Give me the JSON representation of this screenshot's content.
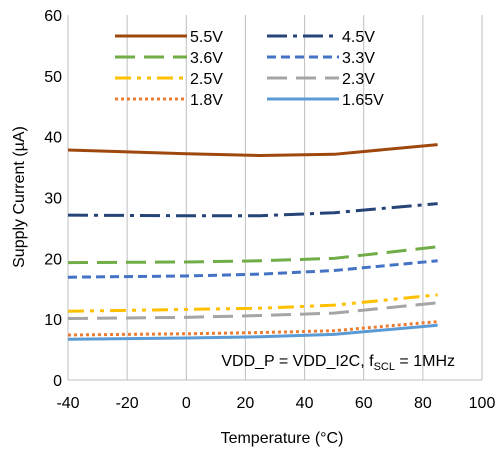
{
  "chart_data": {
    "type": "line",
    "title": "",
    "xlabel": "Temperature (°C)",
    "ylabel": "Supply Current (µA)",
    "xlim": [
      -40,
      100
    ],
    "ylim": [
      0,
      60
    ],
    "xticks": [
      "-40",
      "-20",
      "0",
      "20",
      "40",
      "60",
      "80",
      "100"
    ],
    "yticks": [
      "0",
      "10",
      "20",
      "30",
      "40",
      "50",
      "60"
    ],
    "grid": "vertical",
    "legend_placement": "top-left",
    "annotation": {
      "prefix": "VDD_P = VDD_I2C, f",
      "sub": "SCL",
      "suffix": " = 1MHz"
    },
    "series": [
      {
        "name": "5.5V",
        "color": "#9E480E",
        "style": "solid",
        "x": [
          -40,
          0,
          25,
          50,
          85
        ],
        "y": [
          37.8,
          37.2,
          36.9,
          37.1,
          38.7
        ]
      },
      {
        "name": "4.5V",
        "color": "#264478",
        "style": "dashdot",
        "x": [
          -40,
          0,
          25,
          50,
          85
        ],
        "y": [
          27.1,
          27.0,
          27.0,
          27.5,
          29.0
        ]
      },
      {
        "name": "3.6V",
        "color": "#70AD47",
        "style": "longdash",
        "x": [
          -40,
          0,
          25,
          50,
          85
        ],
        "y": [
          19.3,
          19.4,
          19.6,
          20.0,
          21.9
        ]
      },
      {
        "name": "3.3V",
        "color": "#4472C4",
        "style": "dash",
        "x": [
          -40,
          0,
          25,
          50,
          85
        ],
        "y": [
          16.9,
          17.1,
          17.4,
          18.0,
          19.6
        ]
      },
      {
        "name": "2.5V",
        "color": "#FFC000",
        "style": "dashdotdot",
        "x": [
          -40,
          0,
          25,
          50,
          85
        ],
        "y": [
          11.3,
          11.6,
          11.8,
          12.3,
          14.0
        ]
      },
      {
        "name": "2.3V",
        "color": "#A5A5A5",
        "style": "longdash",
        "x": [
          -40,
          0,
          25,
          50,
          85
        ],
        "y": [
          10.1,
          10.3,
          10.6,
          11.0,
          12.7
        ]
      },
      {
        "name": "1.8V",
        "color": "#ED7D31",
        "style": "dot",
        "x": [
          -40,
          0,
          25,
          50,
          85
        ],
        "y": [
          7.4,
          7.6,
          7.8,
          8.1,
          9.6
        ]
      },
      {
        "name": "1.65V",
        "color": "#5B9BD5",
        "style": "solid",
        "x": [
          -40,
          0,
          25,
          50,
          85
        ],
        "y": [
          6.7,
          6.9,
          7.1,
          7.5,
          9.0
        ]
      }
    ]
  }
}
